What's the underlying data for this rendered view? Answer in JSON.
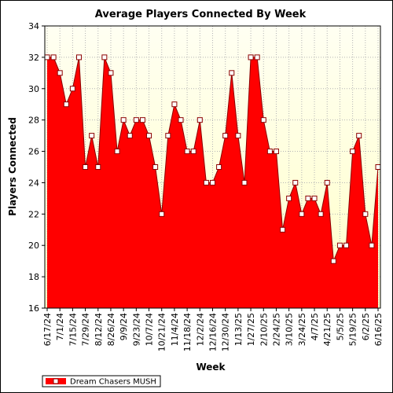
{
  "chart_data": {
    "type": "area",
    "title": "Average Players Connected By Week",
    "xlabel": "Week",
    "ylabel": "Players Connected",
    "ylim": [
      16,
      34
    ],
    "yticks": [
      16,
      18,
      20,
      22,
      24,
      26,
      28,
      30,
      32,
      34
    ],
    "grid": true,
    "legend": "bottom-left",
    "colors": {
      "fill": "#ff0000",
      "line": "#8b0000",
      "plot_bg_top": "#fffff2",
      "plot_bg_bottom": "#ffffc8",
      "grid": "#b4b4b4",
      "marker_fill": "#ffffff",
      "marker_stroke": "#8b0000"
    },
    "x_tick_labels": [
      "6/17/24",
      "7/1/24",
      "7/15/24",
      "7/29/24",
      "8/12/24",
      "8/26/24",
      "9/9/24",
      "9/23/24",
      "10/7/24",
      "10/21/24",
      "11/4/24",
      "11/18/24",
      "12/2/24",
      "12/16/24",
      "12/30/24",
      "1/13/25",
      "1/27/25",
      "2/10/25",
      "2/24/25",
      "3/10/25",
      "3/24/25",
      "4/7/25",
      "4/21/25",
      "5/5/25",
      "5/19/25",
      "6/2/25",
      "6/16/25"
    ],
    "series": [
      {
        "name": "Dream Chasers MUSH",
        "x": [
          "6/17/24",
          "6/24/24",
          "7/1/24",
          "7/8/24",
          "7/15/24",
          "7/22/24",
          "7/29/24",
          "8/5/24",
          "8/12/24",
          "8/19/24",
          "8/26/24",
          "9/2/24",
          "9/9/24",
          "9/16/24",
          "9/23/24",
          "9/30/24",
          "10/7/24",
          "10/14/24",
          "10/21/24",
          "10/28/24",
          "11/4/24",
          "11/11/24",
          "11/18/24",
          "11/25/24",
          "12/2/24",
          "12/9/24",
          "12/16/24",
          "12/23/24",
          "12/30/24",
          "1/6/25",
          "1/13/25",
          "1/20/25",
          "1/27/25",
          "2/3/25",
          "2/10/25",
          "2/17/25",
          "2/24/25",
          "3/3/25",
          "3/10/25",
          "3/17/25",
          "3/24/25",
          "3/31/25",
          "4/7/25",
          "4/14/25",
          "4/21/25",
          "4/28/25",
          "5/5/25",
          "5/12/25",
          "5/19/25",
          "5/26/25",
          "6/2/25",
          "6/9/25",
          "6/16/25"
        ],
        "values": [
          32,
          32,
          31,
          29,
          30,
          32,
          25,
          27,
          25,
          32,
          31,
          26,
          28,
          27,
          28,
          28,
          27,
          25,
          22,
          27,
          29,
          28,
          26,
          26,
          28,
          24,
          24,
          25,
          27,
          31,
          27,
          24,
          32,
          32,
          28,
          26,
          26,
          21,
          23,
          24,
          22,
          23,
          23,
          22,
          24,
          19,
          20,
          20,
          26,
          27,
          22,
          20,
          25
        ]
      }
    ]
  }
}
